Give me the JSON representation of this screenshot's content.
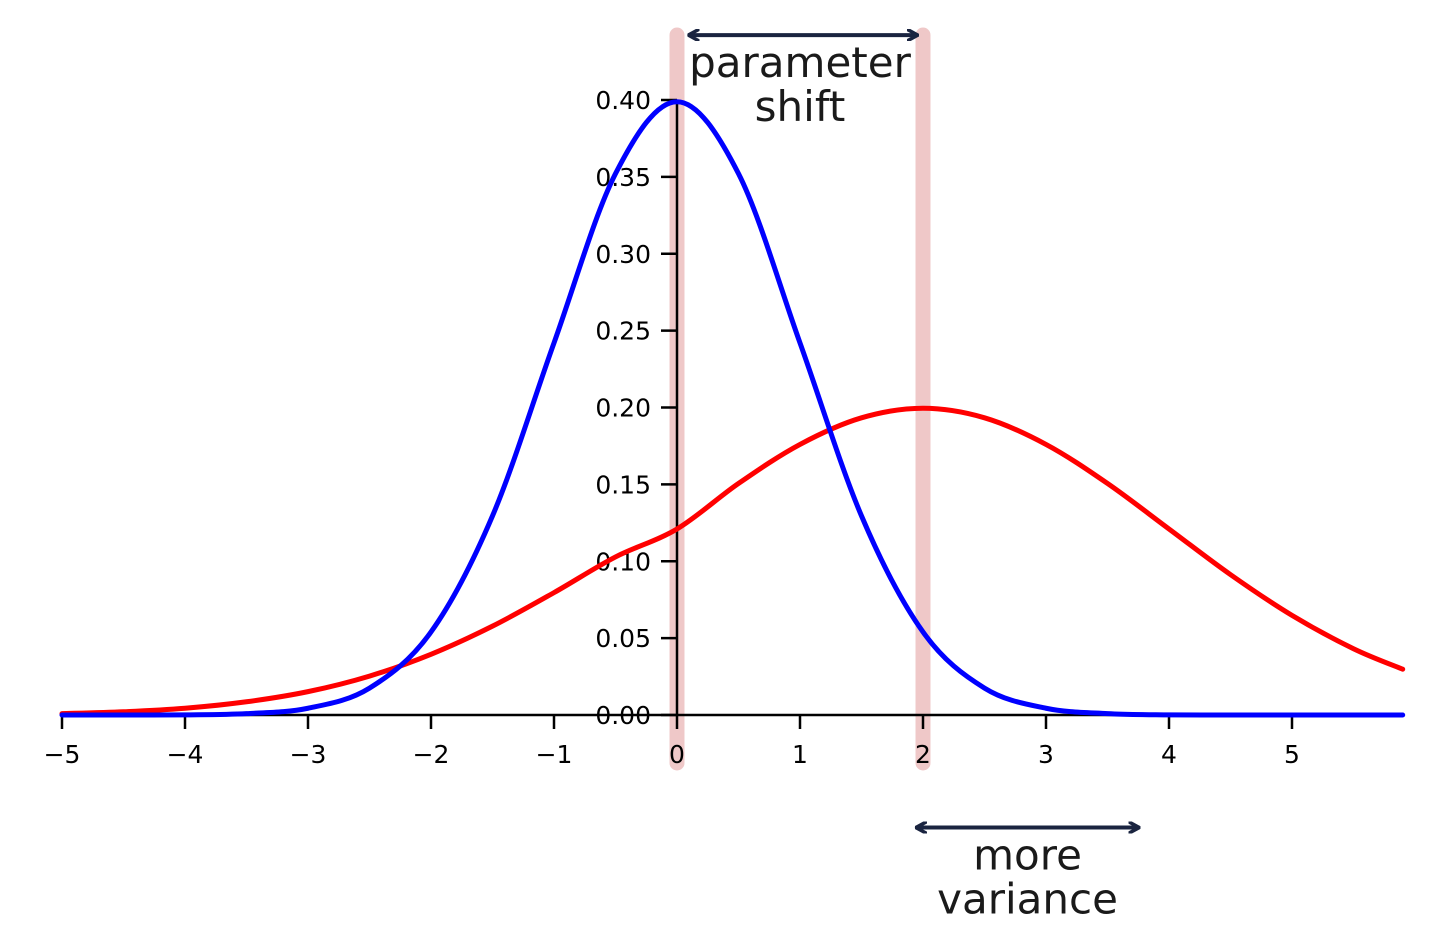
{
  "chart_data": {
    "type": "line",
    "title": "",
    "xlabel": "",
    "ylabel": "",
    "xlim": [
      -5,
      5.9
    ],
    "ylim": [
      0,
      0.4
    ],
    "grid": false,
    "x_ticks": [
      "−5",
      "−4",
      "−3",
      "−2",
      "−1",
      "0",
      "1",
      "2",
      "3",
      "4",
      "5"
    ],
    "x_tick_values": [
      -5,
      -4,
      -3,
      -2,
      -1,
      0,
      1,
      2,
      3,
      4,
      5
    ],
    "y_ticks": [
      "0.00",
      "0.05",
      "0.10",
      "0.15",
      "0.20",
      "0.25",
      "0.30",
      "0.35",
      "0.40"
    ],
    "y_tick_values": [
      0,
      0.05,
      0.1,
      0.15,
      0.2,
      0.25,
      0.3,
      0.35,
      0.4
    ],
    "series": [
      {
        "color": "#0000ff",
        "x": [
          -5,
          -4.5,
          -4,
          -3.5,
          -3,
          -2.5,
          -2,
          -1.5,
          -1,
          -0.5,
          0,
          0.5,
          1,
          1.5,
          2,
          2.5,
          3,
          3.5,
          4,
          4.5,
          5,
          5.5,
          5.9
        ],
        "values": [
          0.0,
          0.0,
          0.0001,
          0.0009,
          0.0044,
          0.0175,
          0.054,
          0.1295,
          0.242,
          0.3521,
          0.3989,
          0.3521,
          0.242,
          0.1295,
          0.054,
          0.0175,
          0.0044,
          0.0009,
          0.0001,
          0.0,
          0.0,
          0.0,
          0.0
        ]
      },
      {
        "color": "#ff0000",
        "x": [
          -5,
          -4.5,
          -4,
          -3.5,
          -3,
          -2.5,
          -2,
          -1.5,
          -1,
          -0.5,
          0,
          0.5,
          1,
          1.5,
          2,
          2.5,
          3,
          3.5,
          4,
          4.5,
          5,
          5.5,
          5.9
        ],
        "values": [
          0.0009,
          0.0021,
          0.0044,
          0.0086,
          0.0152,
          0.0253,
          0.0395,
          0.0578,
          0.0796,
          0.1028,
          0.121,
          0.1506,
          0.176,
          0.1933,
          0.1995,
          0.1933,
          0.176,
          0.1506,
          0.121,
          0.0913,
          0.0648,
          0.0431,
          0.0298
        ]
      }
    ],
    "highlights": [
      {
        "x": 0,
        "color": "#e9b5b5"
      },
      {
        "x": 2,
        "color": "#e9b5b5"
      }
    ],
    "annotations": [
      {
        "lines": [
          "parameter",
          "shift"
        ],
        "from_x": 0.1,
        "to_x": 1.95,
        "arrow_y": 0.4422,
        "text_x": 1.0
      },
      {
        "lines": [
          "more",
          "variance"
        ],
        "from_x": 1.95,
        "to_x": 3.75,
        "arrow_y": -0.0732,
        "text_x": 2.85
      }
    ],
    "colors": {
      "arrow": "#1a2440",
      "axis": "#000000",
      "tick_label_highlight": "#8b3a3a"
    }
  }
}
